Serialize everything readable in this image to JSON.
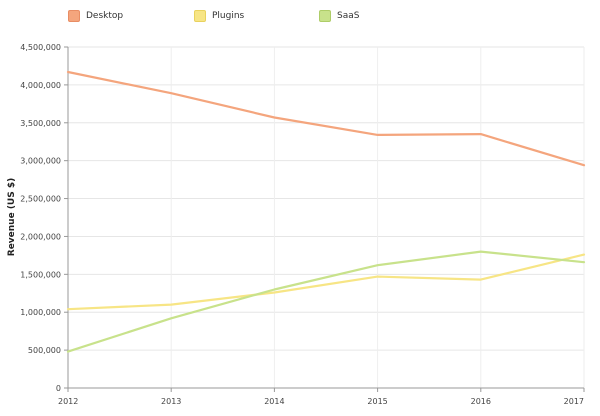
{
  "chart_data": {
    "type": "line",
    "title": "",
    "xlabel": "",
    "ylabel": "Revenue (US $)",
    "x": [
      "2012",
      "2013",
      "2014",
      "2015",
      "2016",
      "2017"
    ],
    "ylim": [
      0,
      4500000
    ],
    "yticks": [
      "0",
      "500,000",
      "1,000,000",
      "1,500,000",
      "2,000,000",
      "2,500,000",
      "3,000,000",
      "3,500,000",
      "4,000,000",
      "4,500,000"
    ],
    "grid": true,
    "legend_position": "top-left",
    "series": [
      {
        "name": "Desktop",
        "color": "#f4a57d",
        "values": [
          4170000,
          3890000,
          3570000,
          3340000,
          3350000,
          2940000
        ]
      },
      {
        "name": "Plugins",
        "color": "#f7e585",
        "values": [
          1040000,
          1100000,
          1260000,
          1470000,
          1430000,
          1760000
        ]
      },
      {
        "name": "SaaS",
        "color": "#c8e28b",
        "values": [
          480000,
          920000,
          1300000,
          1620000,
          1800000,
          1660000
        ]
      }
    ]
  }
}
